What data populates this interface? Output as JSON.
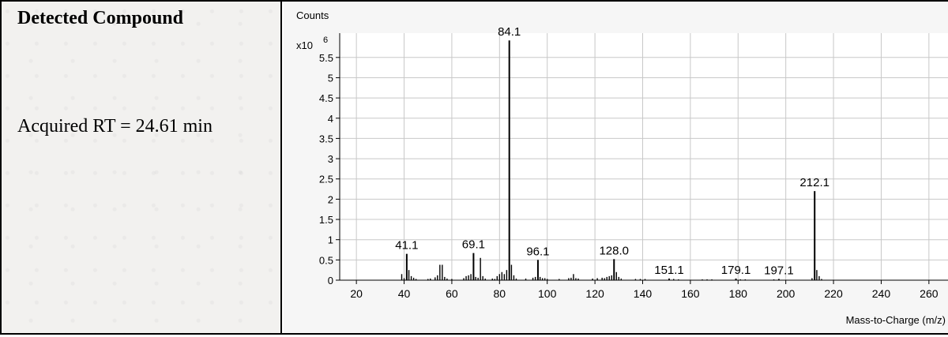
{
  "left_panel": {
    "title": "Detected Compound",
    "rt_text": "Acquired RT = 24.61 min"
  },
  "chart_data": {
    "type": "bar",
    "title": "",
    "ylabel": "Counts",
    "y_multiplier": "x10",
    "y_exponent": "6",
    "xlabel": "Mass-to-Charge (m/z)",
    "xlim": [
      13,
      268
    ],
    "ylim": [
      0,
      6.1
    ],
    "x_ticks": [
      20,
      40,
      60,
      80,
      100,
      120,
      140,
      160,
      180,
      200,
      220,
      240,
      260
    ],
    "y_ticks": [
      0,
      0.5,
      1,
      1.5,
      2,
      2.5,
      3,
      3.5,
      4,
      4.5,
      5,
      5.5
    ],
    "y_tick_labels": [
      "0",
      "0.5",
      "1",
      "1.5",
      "2",
      "2.5",
      "3",
      "3.5",
      "4",
      "4.5",
      "5",
      "5.5"
    ],
    "grid": true,
    "labeled_peaks": [
      {
        "mz": 41.1,
        "label": "41.1",
        "value": 0.65
      },
      {
        "mz": 69.1,
        "label": "69.1",
        "value": 0.67
      },
      {
        "mz": 84.1,
        "label": "84.1",
        "value": 5.92
      },
      {
        "mz": 96.1,
        "label": "96.1",
        "value": 0.5
      },
      {
        "mz": 128.0,
        "label": "128.0",
        "value": 0.52
      },
      {
        "mz": 151.1,
        "label": "151.1",
        "value": 0.04
      },
      {
        "mz": 179.1,
        "label": "179.1",
        "value": 0.04
      },
      {
        "mz": 197.1,
        "label": "197.1",
        "value": 0.03
      },
      {
        "mz": 212.1,
        "label": "212.1",
        "value": 2.2
      }
    ],
    "minor_peaks": [
      {
        "mz": 39,
        "value": 0.15
      },
      {
        "mz": 40,
        "value": 0.05
      },
      {
        "mz": 42,
        "value": 0.25
      },
      {
        "mz": 43,
        "value": 0.1
      },
      {
        "mz": 44,
        "value": 0.06
      },
      {
        "mz": 45,
        "value": 0.03
      },
      {
        "mz": 50,
        "value": 0.03
      },
      {
        "mz": 51,
        "value": 0.04
      },
      {
        "mz": 53,
        "value": 0.07
      },
      {
        "mz": 54,
        "value": 0.12
      },
      {
        "mz": 55,
        "value": 0.38
      },
      {
        "mz": 56,
        "value": 0.38
      },
      {
        "mz": 57,
        "value": 0.08
      },
      {
        "mz": 58,
        "value": 0.04
      },
      {
        "mz": 60,
        "value": 0.03
      },
      {
        "mz": 65,
        "value": 0.05
      },
      {
        "mz": 66,
        "value": 0.1
      },
      {
        "mz": 67,
        "value": 0.12
      },
      {
        "mz": 68,
        "value": 0.15
      },
      {
        "mz": 70,
        "value": 0.08
      },
      {
        "mz": 71,
        "value": 0.06
      },
      {
        "mz": 72,
        "value": 0.55
      },
      {
        "mz": 73,
        "value": 0.1
      },
      {
        "mz": 74,
        "value": 0.04
      },
      {
        "mz": 77,
        "value": 0.04
      },
      {
        "mz": 78,
        "value": 0.03
      },
      {
        "mz": 79,
        "value": 0.1
      },
      {
        "mz": 80,
        "value": 0.15
      },
      {
        "mz": 81,
        "value": 0.2
      },
      {
        "mz": 82,
        "value": 0.15
      },
      {
        "mz": 83,
        "value": 0.25
      },
      {
        "mz": 85,
        "value": 0.38
      },
      {
        "mz": 86,
        "value": 0.12
      },
      {
        "mz": 87,
        "value": 0.04
      },
      {
        "mz": 91,
        "value": 0.04
      },
      {
        "mz": 94,
        "value": 0.06
      },
      {
        "mz": 95,
        "value": 0.08
      },
      {
        "mz": 97,
        "value": 0.08
      },
      {
        "mz": 98,
        "value": 0.05
      },
      {
        "mz": 99,
        "value": 0.05
      },
      {
        "mz": 100,
        "value": 0.03
      },
      {
        "mz": 105,
        "value": 0.03
      },
      {
        "mz": 109,
        "value": 0.05
      },
      {
        "mz": 110,
        "value": 0.06
      },
      {
        "mz": 111,
        "value": 0.15
      },
      {
        "mz": 112,
        "value": 0.05
      },
      {
        "mz": 113,
        "value": 0.04
      },
      {
        "mz": 119,
        "value": 0.04
      },
      {
        "mz": 121,
        "value": 0.05
      },
      {
        "mz": 123,
        "value": 0.06
      },
      {
        "mz": 124,
        "value": 0.05
      },
      {
        "mz": 125,
        "value": 0.08
      },
      {
        "mz": 126,
        "value": 0.1
      },
      {
        "mz": 127,
        "value": 0.12
      },
      {
        "mz": 129,
        "value": 0.2
      },
      {
        "mz": 130,
        "value": 0.08
      },
      {
        "mz": 131,
        "value": 0.04
      },
      {
        "mz": 137,
        "value": 0.03
      },
      {
        "mz": 139,
        "value": 0.03
      },
      {
        "mz": 141,
        "value": 0.03
      },
      {
        "mz": 153,
        "value": 0.03
      },
      {
        "mz": 155,
        "value": 0.02
      },
      {
        "mz": 165,
        "value": 0.02
      },
      {
        "mz": 167,
        "value": 0.02
      },
      {
        "mz": 169,
        "value": 0.02
      },
      {
        "mz": 181,
        "value": 0.02
      },
      {
        "mz": 183,
        "value": 0.02
      },
      {
        "mz": 195,
        "value": 0.02
      },
      {
        "mz": 211,
        "value": 0.05
      },
      {
        "mz": 213,
        "value": 0.25
      },
      {
        "mz": 214,
        "value": 0.1
      },
      {
        "mz": 215,
        "value": 0.03
      }
    ],
    "colors": {
      "bar": "#000000",
      "grid": "#c8c8c8",
      "plot_bg": "#ffffff"
    }
  }
}
